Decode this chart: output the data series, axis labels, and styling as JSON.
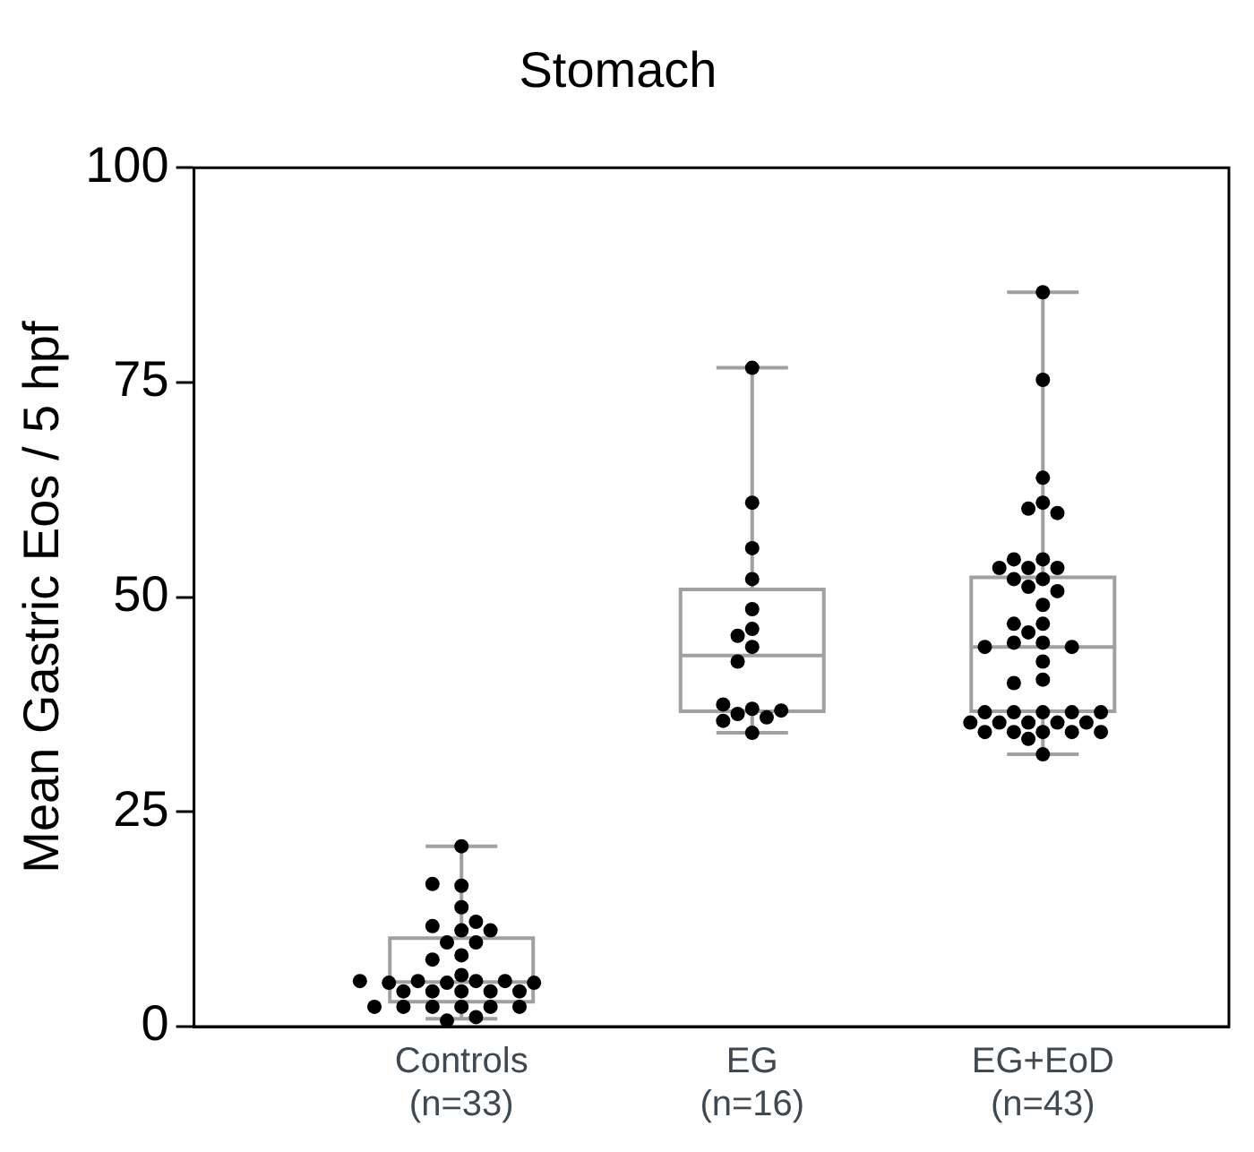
{
  "chart_data": {
    "type": "box",
    "title": "Stomach",
    "ylabel": "Mean Gastric Eos / 5 hpf",
    "categories": [
      "Controls\n(n=33)",
      "EG\n(n=16)",
      "EG+EoD\n(n=43)"
    ],
    "ylim": [
      0,
      100
    ],
    "yticks": [
      0,
      25,
      50,
      75,
      100
    ],
    "grid": false,
    "legend": false,
    "marker": "circle",
    "series": [
      {
        "type": "box",
        "color": "#a0a0a0",
        "boxes": [
          {
            "low": 0.9,
            "q1": 2.9,
            "median": 5.2,
            "q3": 10.3,
            "high": 21
          },
          {
            "low": 34.2,
            "q1": 36.7,
            "median": 43.2,
            "q3": 50.9,
            "high": 76.7
          },
          {
            "low": 31.7,
            "q1": 36.7,
            "median": 44.2,
            "q3": 52.3,
            "high": 85.5
          }
        ]
      },
      {
        "type": "scatter",
        "color": "#000000",
        "x": [
          "Controls\n(n=33)",
          "Controls\n(n=33)",
          "Controls\n(n=33)",
          "Controls\n(n=33)",
          "Controls\n(n=33)",
          "Controls\n(n=33)",
          "Controls\n(n=33)",
          "Controls\n(n=33)",
          "Controls\n(n=33)",
          "Controls\n(n=33)",
          "Controls\n(n=33)",
          "Controls\n(n=33)",
          "Controls\n(n=33)",
          "Controls\n(n=33)",
          "Controls\n(n=33)",
          "Controls\n(n=33)",
          "Controls\n(n=33)",
          "Controls\n(n=33)",
          "Controls\n(n=33)",
          "Controls\n(n=33)",
          "Controls\n(n=33)",
          "Controls\n(n=33)",
          "Controls\n(n=33)",
          "Controls\n(n=33)",
          "Controls\n(n=33)",
          "Controls\n(n=33)",
          "Controls\n(n=33)",
          "Controls\n(n=33)",
          "Controls\n(n=33)",
          "Controls\n(n=33)",
          "Controls\n(n=33)",
          "Controls\n(n=33)",
          "Controls\n(n=33)",
          "EG\n(n=16)",
          "EG\n(n=16)",
          "EG\n(n=16)",
          "EG\n(n=16)",
          "EG\n(n=16)",
          "EG\n(n=16)",
          "EG\n(n=16)",
          "EG\n(n=16)",
          "EG\n(n=16)",
          "EG\n(n=16)",
          "EG\n(n=16)",
          "EG\n(n=16)",
          "EG\n(n=16)",
          "EG\n(n=16)",
          "EG\n(n=16)",
          "EG\n(n=16)",
          "EG+EoD\n(n=43)",
          "EG+EoD\n(n=43)",
          "EG+EoD\n(n=43)",
          "EG+EoD\n(n=43)",
          "EG+EoD\n(n=43)",
          "EG+EoD\n(n=43)",
          "EG+EoD\n(n=43)",
          "EG+EoD\n(n=43)",
          "EG+EoD\n(n=43)",
          "EG+EoD\n(n=43)",
          "EG+EoD\n(n=43)",
          "EG+EoD\n(n=43)",
          "EG+EoD\n(n=43)",
          "EG+EoD\n(n=43)",
          "EG+EoD\n(n=43)",
          "EG+EoD\n(n=43)",
          "EG+EoD\n(n=43)",
          "EG+EoD\n(n=43)",
          "EG+EoD\n(n=43)",
          "EG+EoD\n(n=43)",
          "EG+EoD\n(n=43)",
          "EG+EoD\n(n=43)",
          "EG+EoD\n(n=43)",
          "EG+EoD\n(n=43)",
          "EG+EoD\n(n=43)",
          "EG+EoD\n(n=43)",
          "EG+EoD\n(n=43)",
          "EG+EoD\n(n=43)",
          "EG+EoD\n(n=43)",
          "EG+EoD\n(n=43)",
          "EG+EoD\n(n=43)",
          "EG+EoD\n(n=43)",
          "EG+EoD\n(n=43)",
          "EG+EoD\n(n=43)",
          "EG+EoD\n(n=43)",
          "EG+EoD\n(n=43)",
          "EG+EoD\n(n=43)",
          "EG+EoD\n(n=43)",
          "EG+EoD\n(n=43)",
          "EG+EoD\n(n=43)",
          "EG+EoD\n(n=43)",
          "EG+EoD\n(n=43)",
          "EG+EoD\n(n=43)"
        ],
        "values": [
          21,
          16.4,
          16.6,
          13.9,
          11.2,
          11.7,
          11.2,
          12.2,
          9.8,
          9.8,
          8.3,
          7.8,
          6,
          5.1,
          5.3,
          5.3,
          5.3,
          5.1,
          5.1,
          4.1,
          4.1,
          4.1,
          4.1,
          4.1,
          2.3,
          2.3,
          2.3,
          2.3,
          2.3,
          2.3,
          0.7,
          1.1,
          5.3,
          76.7,
          61,
          55.7,
          52.1,
          48.6,
          46.3,
          45.5,
          44.2,
          42.5,
          37,
          37.5,
          36.8,
          36.4,
          36,
          35.6,
          34.2,
          85.5,
          75.3,
          63.9,
          61,
          60.3,
          59.8,
          54.4,
          54.4,
          53.4,
          53.4,
          53.4,
          52.1,
          52.1,
          51.2,
          50.7,
          49.1,
          46.9,
          46.9,
          45.9,
          44.7,
          44.7,
          44.2,
          44.2,
          42.5,
          40.4,
          40,
          36.6,
          36.6,
          36.6,
          36.6,
          36.6,
          35.4,
          35.4,
          35.4,
          35.4,
          35.4,
          34.3,
          34.3,
          34.3,
          34.3,
          34.3,
          33.5,
          31.7
        ]
      }
    ]
  }
}
